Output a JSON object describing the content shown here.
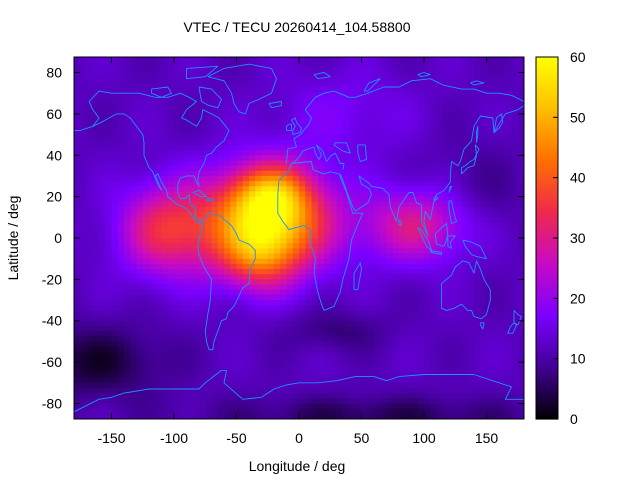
{
  "chart_data": {
    "type": "heatmap",
    "title": "VTEC / TECU 20260414_104.58800",
    "xlabel": "Longitude / deg",
    "ylabel": "Latitude / deg",
    "xlim": [
      -180,
      180
    ],
    "ylim": [
      -87.5,
      87.5
    ],
    "x_ticks": [
      -150,
      -100,
      -50,
      0,
      50,
      100,
      150
    ],
    "y_ticks": [
      -80,
      -60,
      -40,
      -20,
      0,
      20,
      40,
      60,
      80
    ],
    "colorbar": {
      "min": 0,
      "max": 60,
      "ticks": [
        0,
        10,
        20,
        30,
        40,
        50,
        60
      ]
    },
    "grid_resolution": {
      "lon_step": 5,
      "lat_step": 2.5
    },
    "features": [
      {
        "name": "equatorial anomaly peak",
        "lon": -25,
        "lat": 12,
        "value": 57
      },
      {
        "name": "southern crest",
        "lon": -30,
        "lat": -5,
        "value": 54
      },
      {
        "name": "northern shoulder",
        "lon": -40,
        "lat": 25,
        "value": 48
      },
      {
        "name": "Pacific tail",
        "lon": -110,
        "lat": 5,
        "value": 39
      },
      {
        "name": "Indian Ocean tail",
        "lon": 90,
        "lat": 8,
        "value": 33
      },
      {
        "name": "southern high-latitude minimum",
        "lon": -160,
        "lat": -60,
        "value": 2
      },
      {
        "name": "south polar minimum",
        "lon": 60,
        "lat": -85,
        "value": 3
      }
    ],
    "background_level": 12,
    "overlay": "coastlines",
    "colormap": [
      "#000000",
      "#410094",
      "#7a00ff",
      "#c60ac6",
      "#f0284e",
      "#ff6e00",
      "#ffbe00",
      "#ffff00"
    ]
  }
}
